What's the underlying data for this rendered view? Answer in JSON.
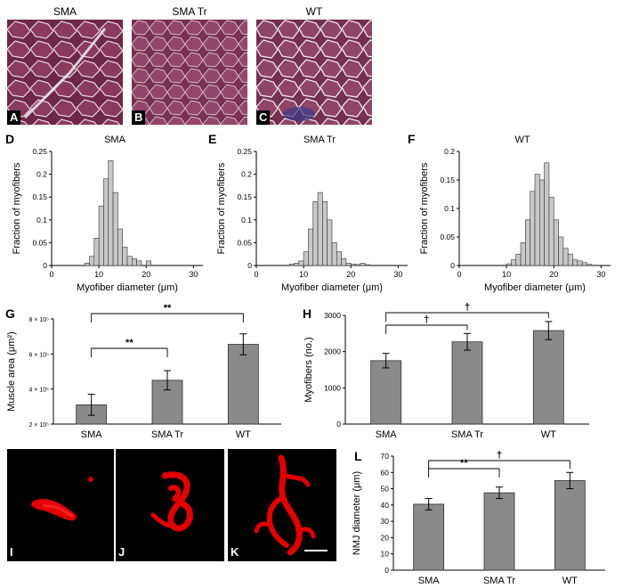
{
  "panels_photo": {
    "A": {
      "letter": "A",
      "title": "SMA"
    },
    "B": {
      "letter": "B",
      "title": "SMA Tr"
    },
    "C": {
      "letter": "C",
      "title": "WT"
    }
  },
  "panels_nmj": {
    "I": {
      "letter": "I"
    },
    "J": {
      "letter": "J"
    },
    "K": {
      "letter": "K"
    }
  },
  "colors": {
    "bar_fill": "#8a8a8a",
    "hist_fill": "#c8c8c8",
    "photo_fill": "#7a2a4a",
    "nmj_red": "#e00000"
  },
  "chart_data": [
    {
      "id": "D",
      "letter": "D",
      "type": "bar",
      "title": "SMA",
      "xlabel": "Myofiber diameter (μm)",
      "ylabel": "Fraction of myofibers",
      "xlim": [
        0,
        32
      ],
      "ylim": [
        0,
        0.25
      ],
      "xticks": [
        "0",
        "10",
        "20",
        "30"
      ],
      "yticks": [
        "0",
        "0.05",
        "0.1",
        "0.15",
        "0.2",
        "0.25"
      ],
      "bin_width": 1,
      "bin_starts": [
        7,
        8,
        9,
        10,
        11,
        12,
        13,
        14,
        15,
        16,
        17,
        18,
        19,
        20,
        21
      ],
      "values": [
        0.005,
        0.02,
        0.06,
        0.13,
        0.19,
        0.23,
        0.16,
        0.08,
        0.04,
        0.02,
        0.015,
        0.01,
        0,
        0.01,
        0
      ]
    },
    {
      "id": "E",
      "letter": "E",
      "type": "bar",
      "title": "SMA Tr",
      "xlabel": "Myofiber diameter (μm)",
      "ylabel": "Fraction of myofibers",
      "xlim": [
        0,
        32
      ],
      "ylim": [
        0,
        0.25
      ],
      "xticks": [
        "0",
        "10",
        "20",
        "30"
      ],
      "yticks": [
        "0",
        "0.05",
        "0.1",
        "0.15",
        "0.2",
        "0.25"
      ],
      "bin_width": 1,
      "bin_starts": [
        7,
        8,
        9,
        10,
        11,
        12,
        13,
        14,
        15,
        16,
        17,
        18,
        19,
        20,
        21,
        22,
        23,
        24
      ],
      "values": [
        0.003,
        0.005,
        0.01,
        0.03,
        0.08,
        0.14,
        0.16,
        0.14,
        0.1,
        0.05,
        0.03,
        0.015,
        0.005,
        0.003,
        0.002,
        0.005,
        0.002,
        0
      ]
    },
    {
      "id": "F",
      "letter": "F",
      "type": "bar",
      "title": "WT",
      "xlabel": "Myofiber diameter (μm)",
      "ylabel": "Fraction of myofibers",
      "xlim": [
        0,
        32
      ],
      "ylim": [
        0,
        0.2
      ],
      "xticks": [
        "0",
        "10",
        "20",
        "30"
      ],
      "yticks": [
        "0",
        "0.05",
        "0.1",
        "0.15",
        "0.2"
      ],
      "bin_width": 1,
      "bin_starts": [
        10,
        11,
        12,
        13,
        14,
        15,
        16,
        17,
        18,
        19,
        20,
        21,
        22,
        23,
        24,
        25,
        26,
        27
      ],
      "values": [
        0.003,
        0.01,
        0.02,
        0.04,
        0.08,
        0.13,
        0.16,
        0.15,
        0.18,
        0.12,
        0.08,
        0.05,
        0.03,
        0.02,
        0.01,
        0.008,
        0.005,
        0.002
      ]
    },
    {
      "id": "G",
      "letter": "G",
      "type": "bar",
      "categories": [
        "SMA",
        "SMA Tr",
        "WT"
      ],
      "values": [
        310000,
        450000,
        655000
      ],
      "errors": [
        60000,
        55000,
        60000
      ],
      "ylabel": "Muscle area (μm²)",
      "ylim": [
        200000,
        800000
      ],
      "yticks": [
        "2 × 10⁵",
        "4 × 10⁵",
        "6 × 10⁵",
        "8 × 10⁵"
      ],
      "brackets": [
        {
          "from": 0,
          "to": 1,
          "label": "**"
        },
        {
          "from": 0,
          "to": 2,
          "label": "**"
        }
      ]
    },
    {
      "id": "H",
      "letter": "H",
      "type": "bar",
      "categories": [
        "SMA",
        "SMA Tr",
        "WT"
      ],
      "values": [
        1750,
        2270,
        2580
      ],
      "errors": [
        200,
        230,
        250
      ],
      "ylabel": "Myofibers (no.)",
      "ylim": [
        0,
        3000
      ],
      "yticks": [
        "0",
        "1000",
        "2000",
        "3000"
      ],
      "brackets": [
        {
          "from": 0,
          "to": 1,
          "label": "†"
        },
        {
          "from": 0,
          "to": 2,
          "label": "†"
        }
      ]
    },
    {
      "id": "L",
      "letter": "L",
      "type": "bar",
      "categories": [
        "SMA",
        "SMA Tr",
        "WT"
      ],
      "values": [
        40.5,
        47.5,
        55
      ],
      "errors": [
        3.5,
        3.5,
        5
      ],
      "ylabel": "NMJ diameter (μm)",
      "ylim": [
        0,
        70
      ],
      "yticks": [
        "0",
        "10",
        "20",
        "30",
        "40",
        "50",
        "60",
        "70"
      ],
      "brackets": [
        {
          "from": 0,
          "to": 1,
          "label": "**"
        },
        {
          "from": 0,
          "to": 2,
          "label": "†"
        }
      ]
    }
  ]
}
